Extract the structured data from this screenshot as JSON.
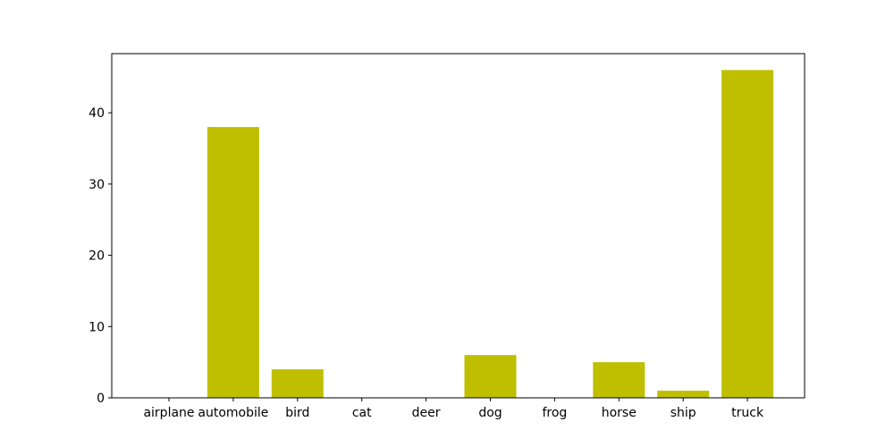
{
  "chart_data": {
    "type": "bar",
    "categories": [
      "airplane",
      "automobile",
      "bird",
      "cat",
      "deer",
      "dog",
      "frog",
      "horse",
      "ship",
      "truck"
    ],
    "values": [
      0,
      38,
      4,
      0,
      0,
      6,
      0,
      5,
      1,
      46
    ],
    "title": "",
    "xlabel": "",
    "ylabel": "",
    "ylim": [
      0,
      48.3
    ],
    "yticks": [
      0,
      10,
      20,
      30,
      40
    ],
    "grid": false,
    "bar_color": "#bfbf00"
  }
}
